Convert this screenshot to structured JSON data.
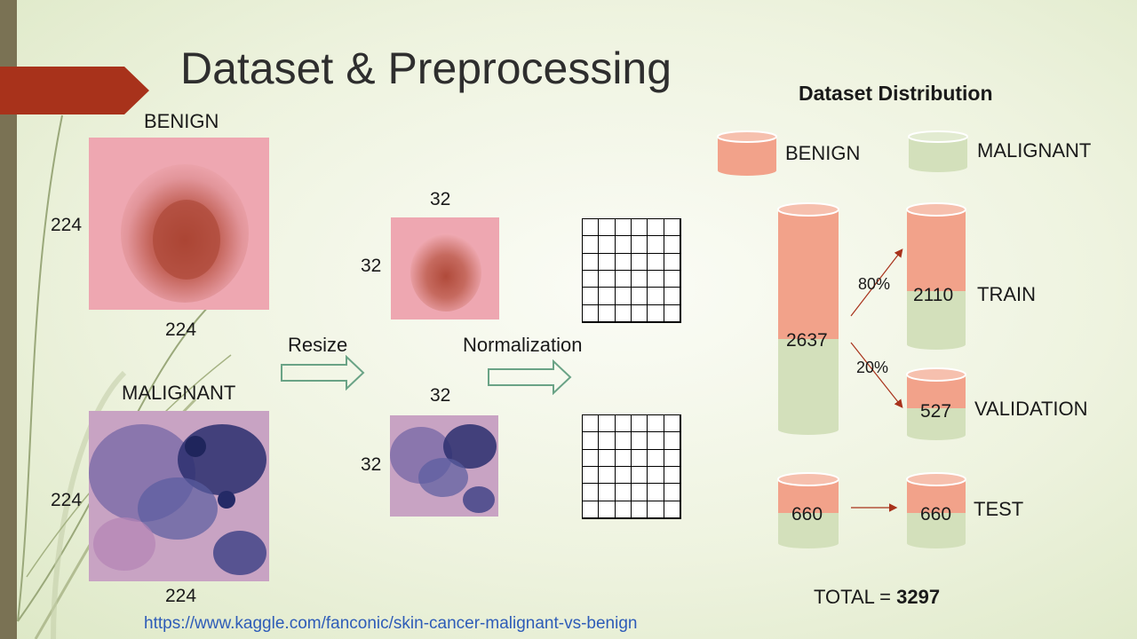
{
  "slide": {
    "title": "Dataset & Preprocessing",
    "source_link": "https://www.kaggle.com/fanconic/skin-cancer-malignant-vs-benign"
  },
  "images": {
    "benign_label": "BENIGN",
    "malignant_label": "MALIGNANT",
    "orig_width": "224",
    "orig_height": "224",
    "resized_width": "32",
    "resized_height": "32",
    "benign_color": "#d9867f",
    "malignant_color": "#3d3f8a"
  },
  "steps": {
    "resize": "Resize",
    "normalization": "Normalization"
  },
  "distribution": {
    "title": "Dataset Distribution",
    "legend_benign": "BENIGN",
    "legend_malignant": "MALIGNANT",
    "benign_color": "#f2a28a",
    "malignant_color": "#d3e0bb",
    "total_prefix": "TOTAL = ",
    "total_value": "3297",
    "main_value": "2637",
    "train_pct": "80%",
    "validation_pct": "20%",
    "train_value": "2110",
    "train_label": "TRAIN",
    "validation_value": "527",
    "validation_label": "VALIDATION",
    "test_source_value": "660",
    "test_value": "660",
    "test_label": "TEST"
  }
}
